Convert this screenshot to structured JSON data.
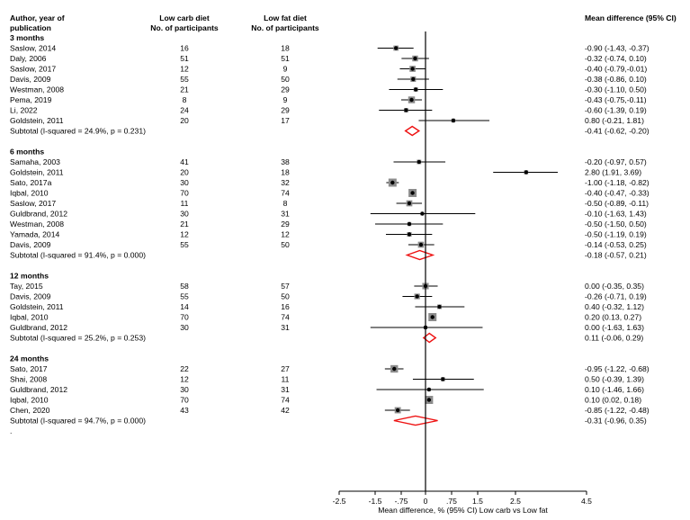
{
  "headers": {
    "col1": [
      "Author, year of",
      "publication"
    ],
    "col2": [
      "Low carb diet",
      "No. of participants"
    ],
    "col3": [
      "Low fat diet",
      "No. of participants"
    ],
    "col4": "Mean difference (95%  CI)"
  },
  "groups": [
    {
      "label": "3 months",
      "studies": [
        {
          "study": "Saslow, 2014",
          "lc": "16",
          "lf": "18",
          "md": -0.9,
          "lo": -1.43,
          "hi": -0.37,
          "ci": "-0.90 (-1.43, -0.37)"
        },
        {
          "study": "Daly, 2006",
          "lc": "51",
          "lf": "51",
          "md": -0.32,
          "lo": -0.74,
          "hi": 0.1,
          "ci": "-0.32 (-0.74, 0.10)"
        },
        {
          "study": "Saslow, 2017",
          "lc": "12",
          "lf": "9",
          "md": -0.4,
          "lo": -0.79,
          "hi": -0.01,
          "ci": "-0.40 (-0.79,-0.01)"
        },
        {
          "study": "Davis, 2009",
          "lc": "55",
          "lf": "50",
          "md": -0.38,
          "lo": -0.86,
          "hi": 0.1,
          "ci": "-0.38 (-0.86, 0.10)"
        },
        {
          "study": "Westman, 2008",
          "lc": "21",
          "lf": "29",
          "md": -0.3,
          "lo": -1.1,
          "hi": 0.5,
          "ci": "-0.30 (-1.10, 0.50)"
        },
        {
          "study": "Pema, 2019",
          "lc": "8",
          "lf": "9",
          "md": -0.43,
          "lo": -0.75,
          "hi": -0.11,
          "ci": "-0.43 (-0.75,-0.11)"
        },
        {
          "study": "Li, 2022",
          "lc": "24",
          "lf": "29",
          "md": -0.6,
          "lo": -1.39,
          "hi": 0.19,
          "ci": "-0.60 (-1.39, 0.19)"
        },
        {
          "study": "Goldstein, 2011",
          "lc": "20",
          "lf": "17",
          "md": 0.8,
          "lo": -0.21,
          "hi": 1.81,
          "ci": "0.80 (-0.21, 1.81)"
        }
      ],
      "subtotal": {
        "label": "Subtotal  (I-squared = 24.9%, p = 0.231)",
        "md": -0.41,
        "lo": -0.62,
        "hi": -0.2,
        "ci": "-0.41 (-0.62, -0.20)"
      }
    },
    {
      "label": "6 months",
      "studies": [
        {
          "study": "Samaha, 2003",
          "lc": "41",
          "lf": "38",
          "md": -0.2,
          "lo": -0.97,
          "hi": 0.57,
          "ci": "-0.20 (-0.97, 0.57)"
        },
        {
          "study": "Goldstein, 2011",
          "lc": "20",
          "lf": "18",
          "md": 2.8,
          "lo": 1.91,
          "hi": 3.69,
          "ci": "2.80 (1.91, 3.69)"
        },
        {
          "study": "Sato, 2017a",
          "lc": "30",
          "lf": "32",
          "md": -1.0,
          "lo": -1.18,
          "hi": -0.82,
          "ci": "-1.00 (-1.18, -0.82)"
        },
        {
          "study": "Iqbal, 2010",
          "lc": "70",
          "lf": "74",
          "md": -0.4,
          "lo": -0.47,
          "hi": -0.33,
          "ci": "-0.40 (-0.47, -0.33)"
        },
        {
          "study": "Saslow, 2017",
          "lc": "11",
          "lf": "8",
          "md": -0.5,
          "lo": -0.89,
          "hi": -0.11,
          "ci": "-0.50 (-0.89, -0.11)"
        },
        {
          "study": "Guldbrand, 2012",
          "lc": "30",
          "lf": "31",
          "md": -0.1,
          "lo": -1.63,
          "hi": 1.43,
          "ci": "-0.10 (-1.63, 1.43)"
        },
        {
          "study": "Westman, 2008",
          "lc": "21",
          "lf": "29",
          "md": -0.5,
          "lo": -1.5,
          "hi": 0.5,
          "ci": "-0.50 (-1.50, 0.50)"
        },
        {
          "study": "Yamada, 2014",
          "lc": "12",
          "lf": "12",
          "md": -0.5,
          "lo": -1.19,
          "hi": 0.19,
          "ci": "-0.50 (-1.19, 0.19)"
        },
        {
          "study": "Davis, 2009",
          "lc": "55",
          "lf": "50",
          "md": -0.14,
          "lo": -0.53,
          "hi": 0.25,
          "ci": "-0.14 (-0.53, 0.25)"
        }
      ],
      "subtotal": {
        "label": "Subtotal  (I-squared = 91.4%, p = 0.000)",
        "md": -0.18,
        "lo": -0.57,
        "hi": 0.21,
        "ci": "-0.18 (-0.57, 0.21)"
      }
    },
    {
      "label": "12 months",
      "studies": [
        {
          "study": "Tay, 2015",
          "lc": "58",
          "lf": "57",
          "md": 0.0,
          "lo": -0.35,
          "hi": 0.35,
          "ci": "0.00 (-0.35, 0.35)"
        },
        {
          "study": "Davis, 2009",
          "lc": "55",
          "lf": "50",
          "md": -0.26,
          "lo": -0.71,
          "hi": 0.19,
          "ci": "-0.26 (-0.71, 0.19)"
        },
        {
          "study": "Goldstein, 2011",
          "lc": "14",
          "lf": "16",
          "md": 0.4,
          "lo": -0.32,
          "hi": 1.12,
          "ci": "0.40 (-0.32, 1.12)"
        },
        {
          "study": "Iqbal, 2010",
          "lc": "70",
          "lf": "74",
          "md": 0.2,
          "lo": 0.13,
          "hi": 0.27,
          "ci": "0.20 (0.13, 0.27)"
        },
        {
          "study": "Guldbrand, 2012",
          "lc": "30",
          "lf": "31",
          "md": 0.0,
          "lo": -1.63,
          "hi": 1.63,
          "ci": "0.00 (-1.63, 1.63)"
        }
      ],
      "subtotal": {
        "label": "Subtotal  (I-squared = 25.2%, p = 0.253)",
        "md": 0.11,
        "lo": -0.06,
        "hi": 0.29,
        "ci": "0.11 (-0.06, 0.29)"
      }
    },
    {
      "label": "24 months",
      "studies": [
        {
          "study": "Sato, 2017",
          "lc": "22",
          "lf": "27",
          "md": -0.95,
          "lo": -1.22,
          "hi": -0.68,
          "ci": "-0.95 (-1.22, -0.68)"
        },
        {
          "study": "Shai, 2008",
          "lc": "12",
          "lf": "11",
          "md": 0.5,
          "lo": -0.39,
          "hi": 1.39,
          "ci": "0.50 (-0.39, 1.39)"
        },
        {
          "study": "Guldbrand, 2012",
          "lc": "30",
          "lf": "31",
          "md": 0.1,
          "lo": -1.46,
          "hi": 1.66,
          "ci": "0.10 (-1.46, 1.66)"
        },
        {
          "study": "Iqbal, 2010",
          "lc": "70",
          "lf": "74",
          "md": 0.1,
          "lo": 0.02,
          "hi": 0.18,
          "ci": "0.10 (0.02, 0.18)"
        },
        {
          "study": "Chen, 2020",
          "lc": "43",
          "lf": "42",
          "md": -0.85,
          "lo": -1.22,
          "hi": -0.48,
          "ci": "-0.85 (-1.22, -0.48)"
        }
      ],
      "subtotal": {
        "label": "Subtotal  (I-squared = 94.7%, p = 0.000)",
        "md": -0.31,
        "lo": -0.96,
        "hi": 0.35,
        "ci": "-0.31 (-0.96, 0.35)"
      }
    }
  ],
  "footnote": ".",
  "chart_data": {
    "type": "forest",
    "xlabel": "Mean difference, % (95% CI) Low carb vs Low fat",
    "xlim": [
      -2.5,
      4.5
    ],
    "xticks": [
      -2.5,
      -1.5,
      -0.75,
      0,
      0.75,
      1.5,
      2.5,
      4.5
    ],
    "xtick_labels": [
      "-2.5",
      "-1.5",
      "-.75",
      "0",
      ".75",
      "1.5",
      "2.5",
      "4.5"
    ],
    "null_line": 0,
    "colors": {
      "marker": "#000000",
      "weight_box": "#8c8c8c",
      "diamond": "#ee1111",
      "line": "#000000"
    }
  }
}
